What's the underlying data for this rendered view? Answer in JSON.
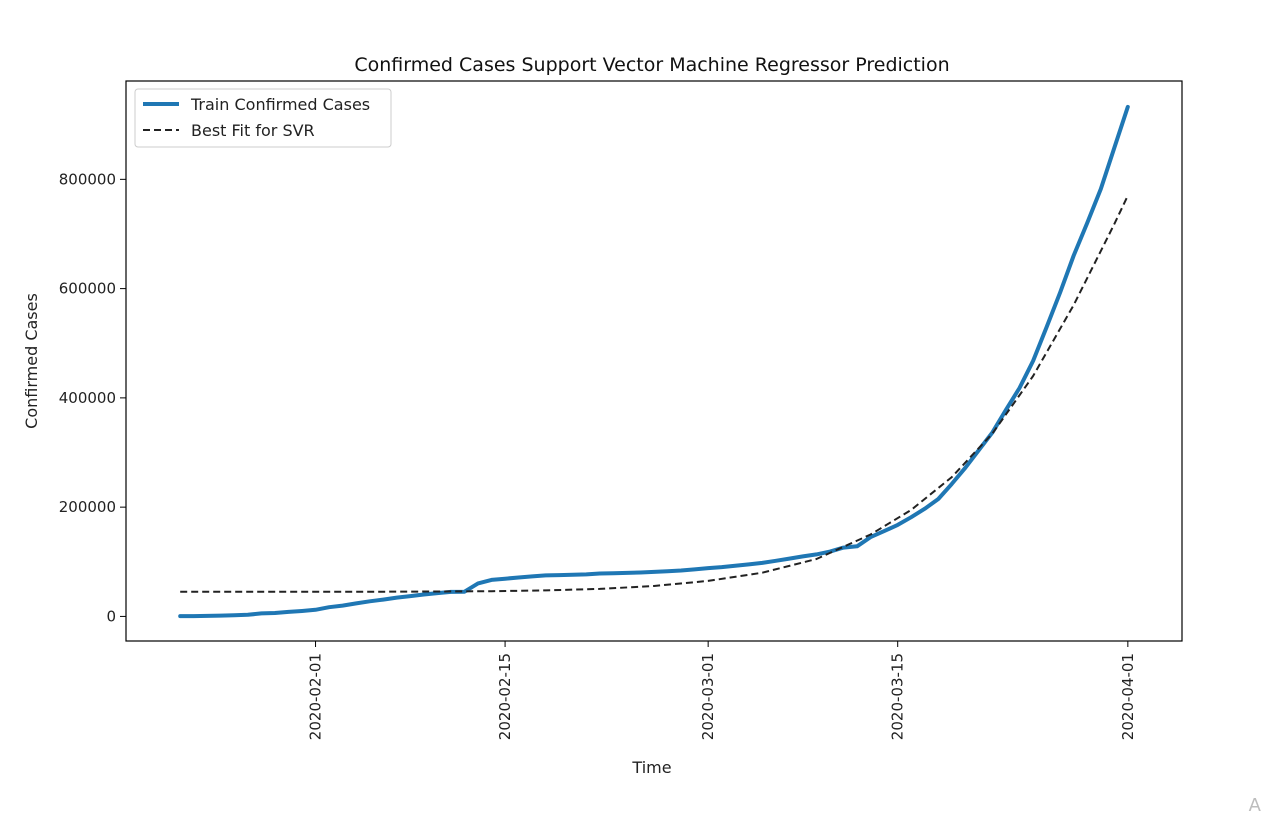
{
  "chart_data": {
    "type": "line",
    "title": "Confirmed Cases Support Vector Machine Regressor Prediction",
    "xlabel": "Time",
    "ylabel": "Confirmed Cases",
    "x_ticks": [
      "2020-02-01",
      "2020-02-15",
      "2020-03-01",
      "2020-03-15",
      "2020-04-01"
    ],
    "y_ticks": [
      "0",
      "200000",
      "400000",
      "600000",
      "800000"
    ],
    "y_tick_values": [
      0,
      200000,
      400000,
      600000,
      800000
    ],
    "xlim": [
      "2020-01-18",
      "2020-04-05"
    ],
    "ylim": [
      -45000,
      980000
    ],
    "legend_position": "top-left",
    "grid": false,
    "series": [
      {
        "name": "Train Confirmed Cases",
        "color": "#1f77b4",
        "style": "solid",
        "points": [
          [
            "2020-01-22",
            555
          ],
          [
            "2020-01-23",
            654
          ],
          [
            "2020-01-24",
            941
          ],
          [
            "2020-01-25",
            1434
          ],
          [
            "2020-01-26",
            2118
          ],
          [
            "2020-01-27",
            2927
          ],
          [
            "2020-01-28",
            5578
          ],
          [
            "2020-01-29",
            6166
          ],
          [
            "2020-01-30",
            8234
          ],
          [
            "2020-01-31",
            9927
          ],
          [
            "2020-02-01",
            12038
          ],
          [
            "2020-02-02",
            16787
          ],
          [
            "2020-02-03",
            19881
          ],
          [
            "2020-02-04",
            23892
          ],
          [
            "2020-02-05",
            27635
          ],
          [
            "2020-02-06",
            30794
          ],
          [
            "2020-02-07",
            34391
          ],
          [
            "2020-02-08",
            37120
          ],
          [
            "2020-02-09",
            40150
          ],
          [
            "2020-02-10",
            42762
          ],
          [
            "2020-02-11",
            44802
          ],
          [
            "2020-02-12",
            45221
          ],
          [
            "2020-02-13",
            60368
          ],
          [
            "2020-02-14",
            66885
          ],
          [
            "2020-02-15",
            69030
          ],
          [
            "2020-02-16",
            71224
          ],
          [
            "2020-02-17",
            73258
          ],
          [
            "2020-02-18",
            75136
          ],
          [
            "2020-02-19",
            75639
          ],
          [
            "2020-02-20",
            76197
          ],
          [
            "2020-02-21",
            76819
          ],
          [
            "2020-02-22",
            78572
          ],
          [
            "2020-02-23",
            78958
          ],
          [
            "2020-02-24",
            79561
          ],
          [
            "2020-02-25",
            80406
          ],
          [
            "2020-02-26",
            81388
          ],
          [
            "2020-02-27",
            82746
          ],
          [
            "2020-02-28",
            84112
          ],
          [
            "2020-02-29",
            86011
          ],
          [
            "2020-03-01",
            88369
          ],
          [
            "2020-03-02",
            90306
          ],
          [
            "2020-03-03",
            92840
          ],
          [
            "2020-03-04",
            95120
          ],
          [
            "2020-03-05",
            97886
          ],
          [
            "2020-03-06",
            101801
          ],
          [
            "2020-03-07",
            105847
          ],
          [
            "2020-03-08",
            109821
          ],
          [
            "2020-03-09",
            113590
          ],
          [
            "2020-03-10",
            118620
          ],
          [
            "2020-03-11",
            125875
          ],
          [
            "2020-03-12",
            128352
          ],
          [
            "2020-03-13",
            145205
          ],
          [
            "2020-03-14",
            156101
          ],
          [
            "2020-03-15",
            167454
          ],
          [
            "2020-03-16",
            181574
          ],
          [
            "2020-03-17",
            197102
          ],
          [
            "2020-03-18",
            214821
          ],
          [
            "2020-03-19",
            242570
          ],
          [
            "2020-03-20",
            272208
          ],
          [
            "2020-03-21",
            304507
          ],
          [
            "2020-03-22",
            336953
          ],
          [
            "2020-03-23",
            378235
          ],
          [
            "2020-03-24",
            418045
          ],
          [
            "2020-03-25",
            467653
          ],
          [
            "2020-03-26",
            529591
          ],
          [
            "2020-03-27",
            593291
          ],
          [
            "2020-03-28",
            660693
          ],
          [
            "2020-03-29",
            720140
          ],
          [
            "2020-03-30",
            782389
          ],
          [
            "2020-03-31",
            857487
          ],
          [
            "2020-04-01",
            932605
          ]
        ]
      },
      {
        "name": "Best Fit for SVR",
        "color": "#222222",
        "style": "dashed",
        "points": [
          [
            "2020-01-22",
            45000
          ],
          [
            "2020-01-25",
            45020
          ],
          [
            "2020-01-29",
            45060
          ],
          [
            "2020-02-02",
            45120
          ],
          [
            "2020-02-06",
            45250
          ],
          [
            "2020-02-10",
            45550
          ],
          [
            "2020-02-14",
            46200
          ],
          [
            "2020-02-18",
            47600
          ],
          [
            "2020-02-22",
            50300
          ],
          [
            "2020-02-26",
            55600
          ],
          [
            "2020-03-01",
            65000
          ],
          [
            "2020-03-05",
            80000
          ],
          [
            "2020-03-09",
            105000
          ],
          [
            "2020-03-13",
            150000
          ],
          [
            "2020-03-16",
            195000
          ],
          [
            "2020-03-19",
            255000
          ],
          [
            "2020-03-22",
            335000
          ],
          [
            "2020-03-25",
            440000
          ],
          [
            "2020-03-28",
            570000
          ],
          [
            "2020-03-31",
            718000
          ],
          [
            "2020-04-01",
            770000
          ]
        ]
      }
    ]
  },
  "corner_letter": "A"
}
